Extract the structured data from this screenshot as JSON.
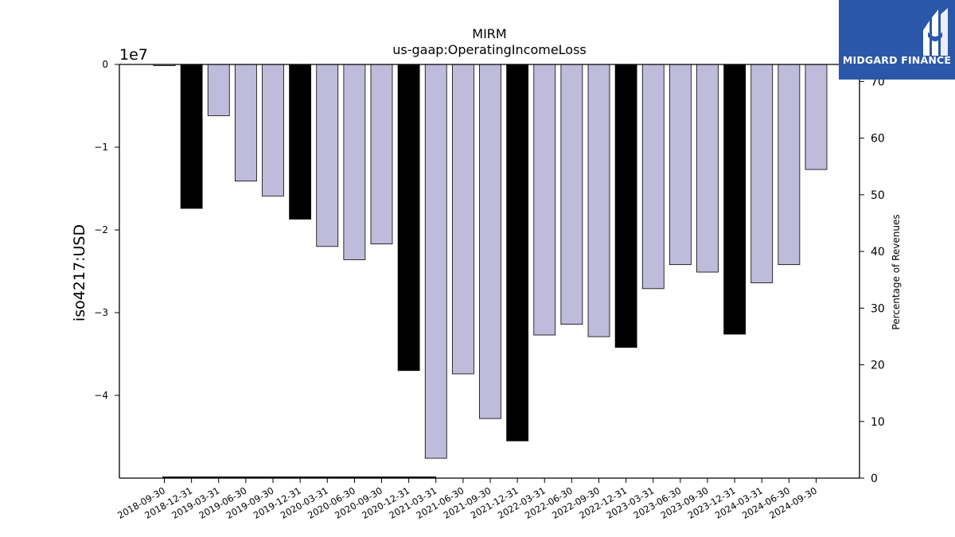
{
  "chart_data": {
    "type": "bar",
    "title": "MIRM",
    "subtitle": "us-gaap:OperatingIncomeLoss",
    "ylabel": "iso4217:USD",
    "y2label": "Percentage of Revenues",
    "offset_label": "1e7",
    "y_ticks": [
      "0",
      "−1",
      "−2",
      "−3",
      "−4"
    ],
    "y2_ticks": [
      "0",
      "10",
      "20",
      "30",
      "40",
      "50",
      "60",
      "70"
    ],
    "ylim": [
      -50000000,
      0
    ],
    "y2lim": [
      0,
      73
    ],
    "colors": {
      "quarter": "#bebbdb",
      "annual": "#000000"
    },
    "categories": [
      "2018-09-30",
      "2018-12-31",
      "2019-03-31",
      "2019-06-30",
      "2019-09-30",
      "2019-12-31",
      "2020-03-31",
      "2020-06-30",
      "2020-09-30",
      "2020-12-31",
      "2021-03-31",
      "2021-06-30",
      "2021-09-30",
      "2021-12-31",
      "2022-03-31",
      "2022-06-30",
      "2022-09-30",
      "2022-12-31",
      "2023-03-31",
      "2023-06-30",
      "2023-09-30",
      "2023-12-31",
      "2024-03-31",
      "2024-06-30",
      "2024-09-30"
    ],
    "values": [
      -150000,
      -17400000,
      -6200000,
      -14100000,
      -15900000,
      -18700000,
      -22000000,
      -23600000,
      -21700000,
      -37000000,
      -47600000,
      -37400000,
      -42800000,
      -45500000,
      -32700000,
      -31400000,
      -32900000,
      -34200000,
      -27100000,
      -24200000,
      -25100000,
      -32600000,
      -26400000,
      -24200000,
      -12700000
    ],
    "bar_kind": [
      "quarter",
      "annual",
      "quarter",
      "quarter",
      "quarter",
      "annual",
      "quarter",
      "quarter",
      "quarter",
      "annual",
      "quarter",
      "quarter",
      "quarter",
      "annual",
      "quarter",
      "quarter",
      "quarter",
      "annual",
      "quarter",
      "quarter",
      "quarter",
      "annual",
      "quarter",
      "quarter",
      "quarter"
    ]
  },
  "logo": {
    "text": "MIDGARD FINANCE"
  }
}
